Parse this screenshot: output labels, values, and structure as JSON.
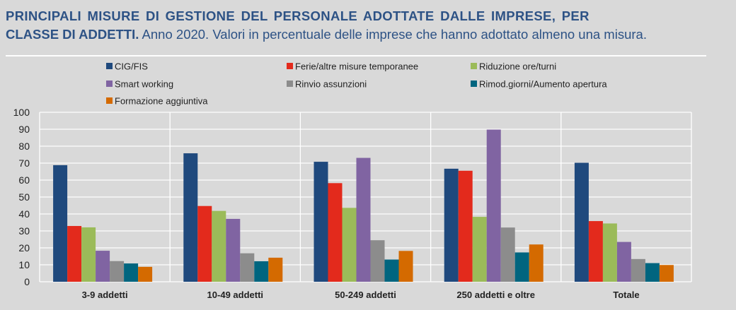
{
  "title": {
    "line1_bold": "PRINCIPALI MISURE DI GESTIONE DEL PERSONALE ADOTTATE DALLE IMPRESE, PER",
    "line2_bold": "CLASSE DI ADDETTI.",
    "line2_rest": " Anno 2020. Valori in percentuale delle imprese che hanno adottato almeno una misura."
  },
  "chart_data": {
    "type": "bar",
    "categories": [
      "3-9 addetti",
      "10-49 addetti",
      "50-249 addetti",
      "250 addetti e oltre",
      "Totale"
    ],
    "ylim": [
      0,
      100
    ],
    "yticks": [
      0,
      10,
      20,
      30,
      40,
      50,
      60,
      70,
      80,
      90,
      100
    ],
    "grid": true,
    "legend_placement": "top",
    "series": [
      {
        "name": "CIG/FIS",
        "color": "#1f497d",
        "values": [
          68.8,
          75.8,
          70.8,
          66.7,
          70.2
        ]
      },
      {
        "name": "Ferie/altre misure temporanee",
        "color": "#e32a1c",
        "values": [
          32.9,
          44.7,
          58.2,
          65.5,
          35.8
        ]
      },
      {
        "name": "Riduzione ore/turni",
        "color": "#9bbb59",
        "values": [
          32.1,
          41.8,
          43.6,
          38.3,
          34.4
        ]
      },
      {
        "name": "Smart working",
        "color": "#8064a2",
        "values": [
          18.3,
          37.1,
          73.1,
          89.8,
          23.5
        ]
      },
      {
        "name": "Rinvio assunzioni",
        "color": "#8c8c8c",
        "values": [
          12.2,
          16.8,
          24.5,
          32.0,
          13.4
        ]
      },
      {
        "name": "Rimod.giorni/Aumento apertura",
        "color": "#00657f",
        "values": [
          10.8,
          12.1,
          13.1,
          17.3,
          11.0
        ]
      },
      {
        "name": "Formazione aggiuntiva",
        "color": "#d46a00",
        "values": [
          8.8,
          14.2,
          18.2,
          22.0,
          9.9
        ]
      }
    ]
  }
}
